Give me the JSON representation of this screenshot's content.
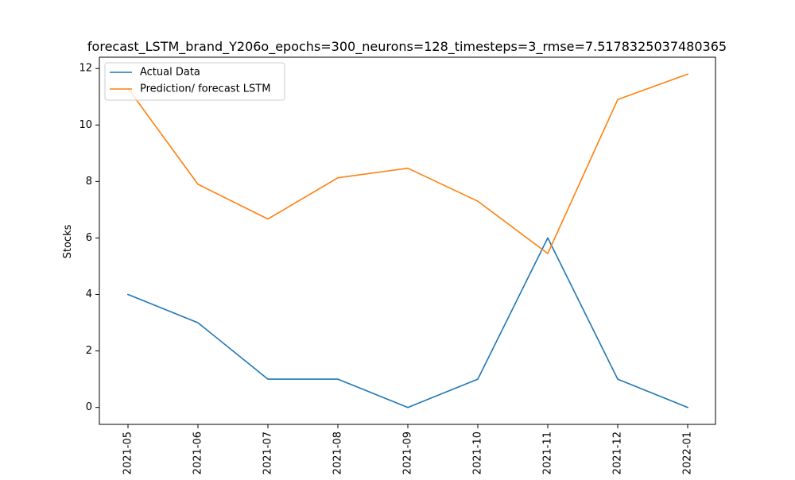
{
  "chart_data": {
    "type": "line",
    "title": "forecast_LSTM_brand_Y206o_epochs=300_neurons=128_timesteps=3_rmse=7.5178325037480365",
    "xlabel": "",
    "ylabel": "Stocks",
    "x": [
      "2021-05",
      "2021-06",
      "2021-07",
      "2021-08",
      "2021-09",
      "2021-10",
      "2021-11",
      "2021-12",
      "2022-01"
    ],
    "yticks": [
      0,
      2,
      4,
      6,
      8,
      10,
      12
    ],
    "ylim": [
      -0.6,
      12.4
    ],
    "grid": false,
    "legend_position": "top-left",
    "series": [
      {
        "name": "Actual Data",
        "color": "#1f77b4",
        "values": [
          4,
          3,
          1,
          1,
          0,
          1,
          6,
          1,
          0
        ]
      },
      {
        "name": "Prediction/ forecast LSTM",
        "color": "#ff7f0e",
        "values": [
          11.3,
          7.9,
          6.67,
          8.13,
          8.47,
          7.3,
          5.45,
          10.9,
          11.8
        ]
      }
    ]
  }
}
